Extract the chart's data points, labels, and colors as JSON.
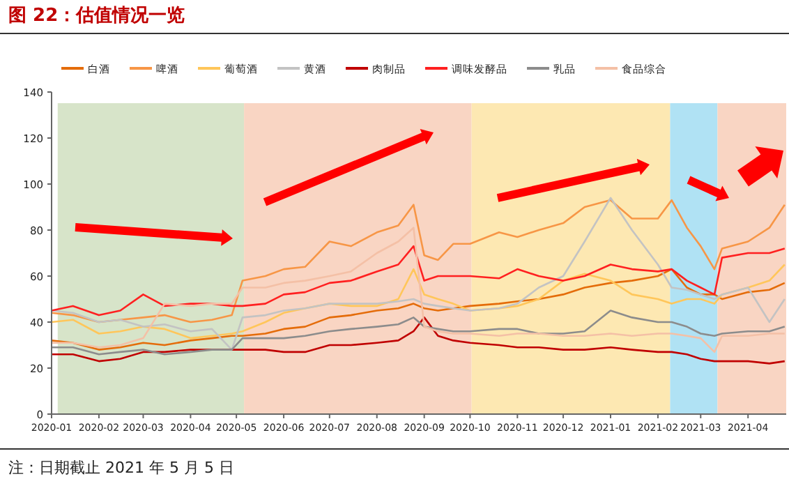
{
  "chart_data": {
    "type": "line",
    "title": "图 22：估值情况一览",
    "x": [
      "2020-01-01",
      "2020-01-15",
      "2020-02-01",
      "2020-02-15",
      "2020-03-01",
      "2020-03-15",
      "2020-04-01",
      "2020-04-15",
      "2020-04-28",
      "2020-05-05",
      "2020-05-20",
      "2020-06-01",
      "2020-06-15",
      "2020-07-01",
      "2020-07-15",
      "2020-08-01",
      "2020-08-15",
      "2020-08-25",
      "2020-09-01",
      "2020-09-10",
      "2020-09-20",
      "2020-10-01",
      "2020-10-20",
      "2020-11-01",
      "2020-11-15",
      "2020-12-01",
      "2020-12-15",
      "2021-01-01",
      "2021-01-15",
      "2021-02-01",
      "2021-02-10",
      "2021-02-20",
      "2021-03-01",
      "2021-03-10",
      "2021-03-15",
      "2021-04-01",
      "2021-04-15",
      "2021-04-25"
    ],
    "series": [
      {
        "name": "白酒",
        "color": "#e46c0a",
        "values": [
          32,
          31,
          28,
          29,
          31,
          30,
          32,
          33,
          34,
          34,
          35,
          37,
          38,
          42,
          43,
          45,
          46,
          48,
          46,
          45,
          46,
          47,
          48,
          49,
          50,
          52,
          55,
          57,
          58,
          60,
          63,
          55,
          52,
          52,
          50,
          53,
          54,
          57
        ]
      },
      {
        "name": "啤酒",
        "color": "#f79646",
        "values": [
          44,
          43,
          40,
          41,
          42,
          43,
          40,
          41,
          43,
          58,
          60,
          63,
          64,
          75,
          73,
          79,
          82,
          91,
          69,
          67,
          74,
          74,
          79,
          77,
          80,
          83,
          90,
          93,
          85,
          85,
          93,
          81,
          73,
          63,
          72,
          75,
          81,
          91
        ]
      },
      {
        "name": "葡萄酒",
        "color": "#ffc65a",
        "values": [
          40,
          41,
          35,
          36,
          38,
          37,
          33,
          34,
          35,
          36,
          40,
          44,
          46,
          48,
          47,
          47,
          50,
          63,
          52,
          50,
          48,
          45,
          46,
          47,
          50,
          58,
          61,
          58,
          52,
          50,
          48,
          50,
          50,
          48,
          52,
          55,
          58,
          65
        ]
      },
      {
        "name": "黄酒",
        "color": "#c3c3c3",
        "values": [
          45,
          44,
          40,
          41,
          38,
          39,
          36,
          37,
          28,
          42,
          43,
          45,
          46,
          48,
          48,
          48,
          49,
          50,
          48,
          47,
          46,
          45,
          46,
          48,
          55,
          60,
          75,
          94,
          80,
          65,
          55,
          54,
          52,
          50,
          52,
          55,
          40,
          50
        ]
      },
      {
        "name": "肉制品",
        "color": "#c00000",
        "values": [
          26,
          26,
          23,
          24,
          27,
          27,
          28,
          28,
          28,
          28,
          28,
          27,
          27,
          30,
          30,
          31,
          32,
          36,
          42,
          34,
          32,
          31,
          30,
          29,
          29,
          28,
          28,
          29,
          28,
          27,
          27,
          26,
          24,
          23,
          23,
          23,
          22,
          23
        ]
      },
      {
        "name": "调味发酵品",
        "color": "#ff2020",
        "values": [
          45,
          47,
          43,
          45,
          52,
          47,
          48,
          48,
          47,
          47,
          48,
          52,
          53,
          57,
          58,
          62,
          65,
          73,
          58,
          60,
          60,
          60,
          59,
          63,
          60,
          58,
          60,
          65,
          63,
          62,
          63,
          58,
          55,
          52,
          68,
          70,
          70,
          72
        ]
      },
      {
        "name": "乳品",
        "color": "#8c8c8c",
        "values": [
          29,
          29,
          26,
          27,
          28,
          26,
          27,
          28,
          28,
          33,
          33,
          33,
          34,
          36,
          37,
          38,
          39,
          42,
          38,
          37,
          36,
          36,
          37,
          37,
          35,
          35,
          36,
          45,
          42,
          40,
          40,
          38,
          35,
          34,
          35,
          36,
          36,
          38
        ]
      },
      {
        "name": "食品综合",
        "color": "#f4c0a6",
        "values": [
          31,
          31,
          29,
          30,
          33,
          48,
          47,
          48,
          48,
          55,
          55,
          57,
          58,
          60,
          62,
          70,
          75,
          81,
          38,
          36,
          35,
          35,
          34,
          35,
          35,
          34,
          34,
          35,
          34,
          35,
          35,
          34,
          33,
          27,
          34,
          34,
          35,
          35
        ]
      }
    ],
    "xlim": [
      "2020-01-01",
      "2021-04-26"
    ],
    "xticks": [
      "2020-01",
      "2020-02",
      "2020-03",
      "2020-04",
      "2020-05",
      "2020-06",
      "2020-07",
      "2020-08",
      "2020-09",
      "2020-10",
      "2020-11",
      "2020-12",
      "2021-01",
      "2021-02",
      "2021-03",
      "2021-04"
    ],
    "ylim": [
      0,
      140
    ],
    "yticks": [
      0,
      20,
      40,
      60,
      80,
      100,
      120,
      140
    ],
    "bands": [
      {
        "axis": "x",
        "from": "2020-01-05",
        "to": "2020-05-06",
        "color": "#d7e4c9"
      },
      {
        "axis": "x",
        "from": "2020-05-06",
        "to": "2020-10-02",
        "color": "#f9d5c3"
      },
      {
        "axis": "x",
        "from": "2020-10-02",
        "to": "2021-02-09",
        "color": "#fde8b2"
      },
      {
        "axis": "x",
        "from": "2021-02-09",
        "to": "2021-03-12",
        "color": "#b0e2f4"
      },
      {
        "axis": "x",
        "from": "2021-03-12",
        "to": "2021-04-26",
        "color": "#f9d5c3"
      }
    ],
    "legend": "top",
    "grid": false,
    "marker": "none",
    "line_style": "solid",
    "annotations": [
      "注：日期截止 2021 年 5 月 5 日"
    ]
  }
}
